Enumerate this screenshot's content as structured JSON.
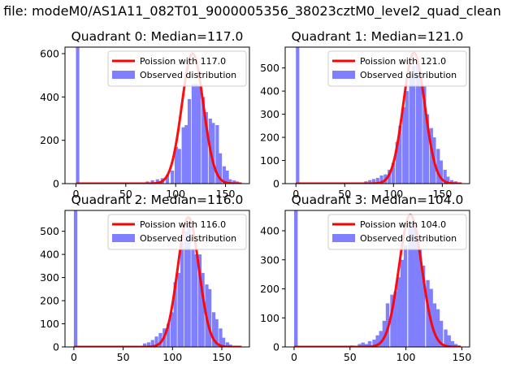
{
  "figure": {
    "suptitle": "n file: modeM0/AS1A11_082T01_9000005356_38023cztM0_level2_quad_clean"
  },
  "colors": {
    "hist": "#8080ff",
    "fit": "#ff0000",
    "axis": "#000000",
    "background": "#ffffff"
  },
  "chart_data": [
    {
      "type": "bar",
      "title": "Quadrant 0: Median=117.0",
      "xlim": [
        -11,
        174
      ],
      "ylim": [
        0,
        630
      ],
      "xticks": [
        0,
        50,
        100,
        150
      ],
      "yticks": [
        0,
        200,
        400,
        600
      ],
      "legend": {
        "placement": "top-right",
        "fit_label": "Poission with 117.0",
        "hist_label": "Observed distribution"
      },
      "series": [
        {
          "name": "Observed distribution",
          "type": "histogram",
          "bin_width": 3.4,
          "bins": [
            [
              0,
              1400
            ],
            [
              70,
              10
            ],
            [
              75,
              15
            ],
            [
              80,
              20
            ],
            [
              85,
              25
            ],
            [
              90,
              40
            ],
            [
              95,
              60
            ],
            [
              99,
              170
            ],
            [
              102,
              160
            ],
            [
              106,
              260
            ],
            [
              109,
              270
            ],
            [
              112,
              390
            ],
            [
              116,
              460
            ],
            [
              119,
              460
            ],
            [
              122,
              450
            ],
            [
              126,
              400
            ],
            [
              129,
              330
            ],
            [
              133,
              300
            ],
            [
              136,
              280
            ],
            [
              140,
              270
            ],
            [
              143,
              140
            ],
            [
              147,
              80
            ],
            [
              150,
              60
            ],
            [
              153,
              20
            ],
            [
              157,
              15
            ],
            [
              160,
              10
            ],
            [
              163,
              5
            ]
          ]
        },
        {
          "name": "Poission with 117.0",
          "type": "poisson",
          "mean": 117.0,
          "peak": 600,
          "sigma": 10.8
        }
      ]
    },
    {
      "type": "bar",
      "title": "Quadrant 1: Median=121.0",
      "xlim": [
        -11,
        178
      ],
      "ylim": [
        0,
        590
      ],
      "xticks": [
        0,
        50,
        100,
        150
      ],
      "yticks": [
        0,
        100,
        200,
        300,
        400,
        500
      ],
      "legend": {
        "placement": "top-right",
        "fit_label": "Poission with 121.0",
        "hist_label": "Observed distribution"
      },
      "series": [
        {
          "name": "Observed distribution",
          "type": "histogram",
          "bin_width": 3.5,
          "bins": [
            [
              0,
              1400
            ],
            [
              60,
              5
            ],
            [
              70,
              10
            ],
            [
              74,
              15
            ],
            [
              78,
              20
            ],
            [
              82,
              25
            ],
            [
              86,
              35
            ],
            [
              90,
              40
            ],
            [
              94,
              60
            ],
            [
              98,
              90
            ],
            [
              102,
              180
            ],
            [
              105,
              250
            ],
            [
              109,
              330
            ],
            [
              112,
              400
            ],
            [
              116,
              460
            ],
            [
              119,
              510
            ],
            [
              123,
              530
            ],
            [
              126,
              480
            ],
            [
              130,
              420
            ],
            [
              133,
              300
            ],
            [
              137,
              240
            ],
            [
              140,
              200
            ],
            [
              144,
              150
            ],
            [
              147,
              100
            ],
            [
              151,
              60
            ],
            [
              154,
              30
            ],
            [
              158,
              15
            ],
            [
              162,
              10
            ]
          ]
        },
        {
          "name": "Poission with 121.0",
          "type": "poisson",
          "mean": 121.0,
          "peak": 565,
          "sigma": 11.0
        }
      ]
    },
    {
      "type": "bar",
      "title": "Quadrant 2: Median=116.0",
      "xlim": [
        -9,
        178
      ],
      "ylim": [
        0,
        590
      ],
      "xticks": [
        0,
        50,
        100,
        150
      ],
      "yticks": [
        0,
        100,
        200,
        300,
        400,
        500
      ],
      "legend": {
        "placement": "top-right",
        "fit_label": "Poission with 116.0",
        "hist_label": "Observed distribution"
      },
      "series": [
        {
          "name": "Observed distribution",
          "type": "histogram",
          "bin_width": 3.5,
          "bins": [
            [
              0,
              1400
            ],
            [
              70,
              15
            ],
            [
              74,
              20
            ],
            [
              78,
              30
            ],
            [
              82,
              45
            ],
            [
              86,
              60
            ],
            [
              90,
              80
            ],
            [
              94,
              100
            ],
            [
              98,
              150
            ],
            [
              101,
              280
            ],
            [
              105,
              320
            ],
            [
              108,
              450
            ],
            [
              112,
              500
            ],
            [
              115,
              540
            ],
            [
              119,
              420
            ],
            [
              122,
              400
            ],
            [
              126,
              400
            ],
            [
              129,
              320
            ],
            [
              133,
              270
            ],
            [
              136,
              250
            ],
            [
              140,
              150
            ],
            [
              143,
              120
            ],
            [
              147,
              80
            ],
            [
              150,
              40
            ],
            [
              154,
              20
            ],
            [
              157,
              10
            ],
            [
              161,
              5
            ]
          ]
        },
        {
          "name": "Poission with 116.0",
          "type": "poisson",
          "mean": 116.0,
          "peak": 560,
          "sigma": 10.8
        }
      ]
    },
    {
      "type": "bar",
      "title": "Quadrant 3: Median=104.0",
      "xlim": [
        -8,
        157
      ],
      "ylim": [
        0,
        470
      ],
      "xticks": [
        0,
        50,
        100,
        150
      ],
      "yticks": [
        0,
        100,
        200,
        300,
        400
      ],
      "legend": {
        "placement": "top-right",
        "fit_label": "Poission with 104.0",
        "hist_label": "Observed distribution"
      },
      "series": [
        {
          "name": "Observed distribution",
          "type": "histogram",
          "bin_width": 3.2,
          "bins": [
            [
              0,
              1400
            ],
            [
              50,
              5
            ],
            [
              57,
              10
            ],
            [
              60,
              15
            ],
            [
              63,
              10
            ],
            [
              66,
              20
            ],
            [
              70,
              25
            ],
            [
              73,
              40
            ],
            [
              76,
              55
            ],
            [
              79,
              90
            ],
            [
              82,
              150
            ],
            [
              86,
              180
            ],
            [
              89,
              190
            ],
            [
              92,
              240
            ],
            [
              95,
              300
            ],
            [
              98,
              350
            ],
            [
              102,
              420
            ],
            [
              105,
              430
            ],
            [
              108,
              400
            ],
            [
              111,
              340
            ],
            [
              114,
              280
            ],
            [
              118,
              230
            ],
            [
              121,
              200
            ],
            [
              124,
              150
            ],
            [
              127,
              130
            ],
            [
              130,
              90
            ],
            [
              134,
              60
            ],
            [
              137,
              40
            ],
            [
              140,
              20
            ],
            [
              143,
              10
            ],
            [
              146,
              5
            ]
          ]
        },
        {
          "name": "Poission with 104.0",
          "type": "poisson",
          "mean": 104.0,
          "peak": 455,
          "sigma": 10.2
        }
      ]
    }
  ]
}
